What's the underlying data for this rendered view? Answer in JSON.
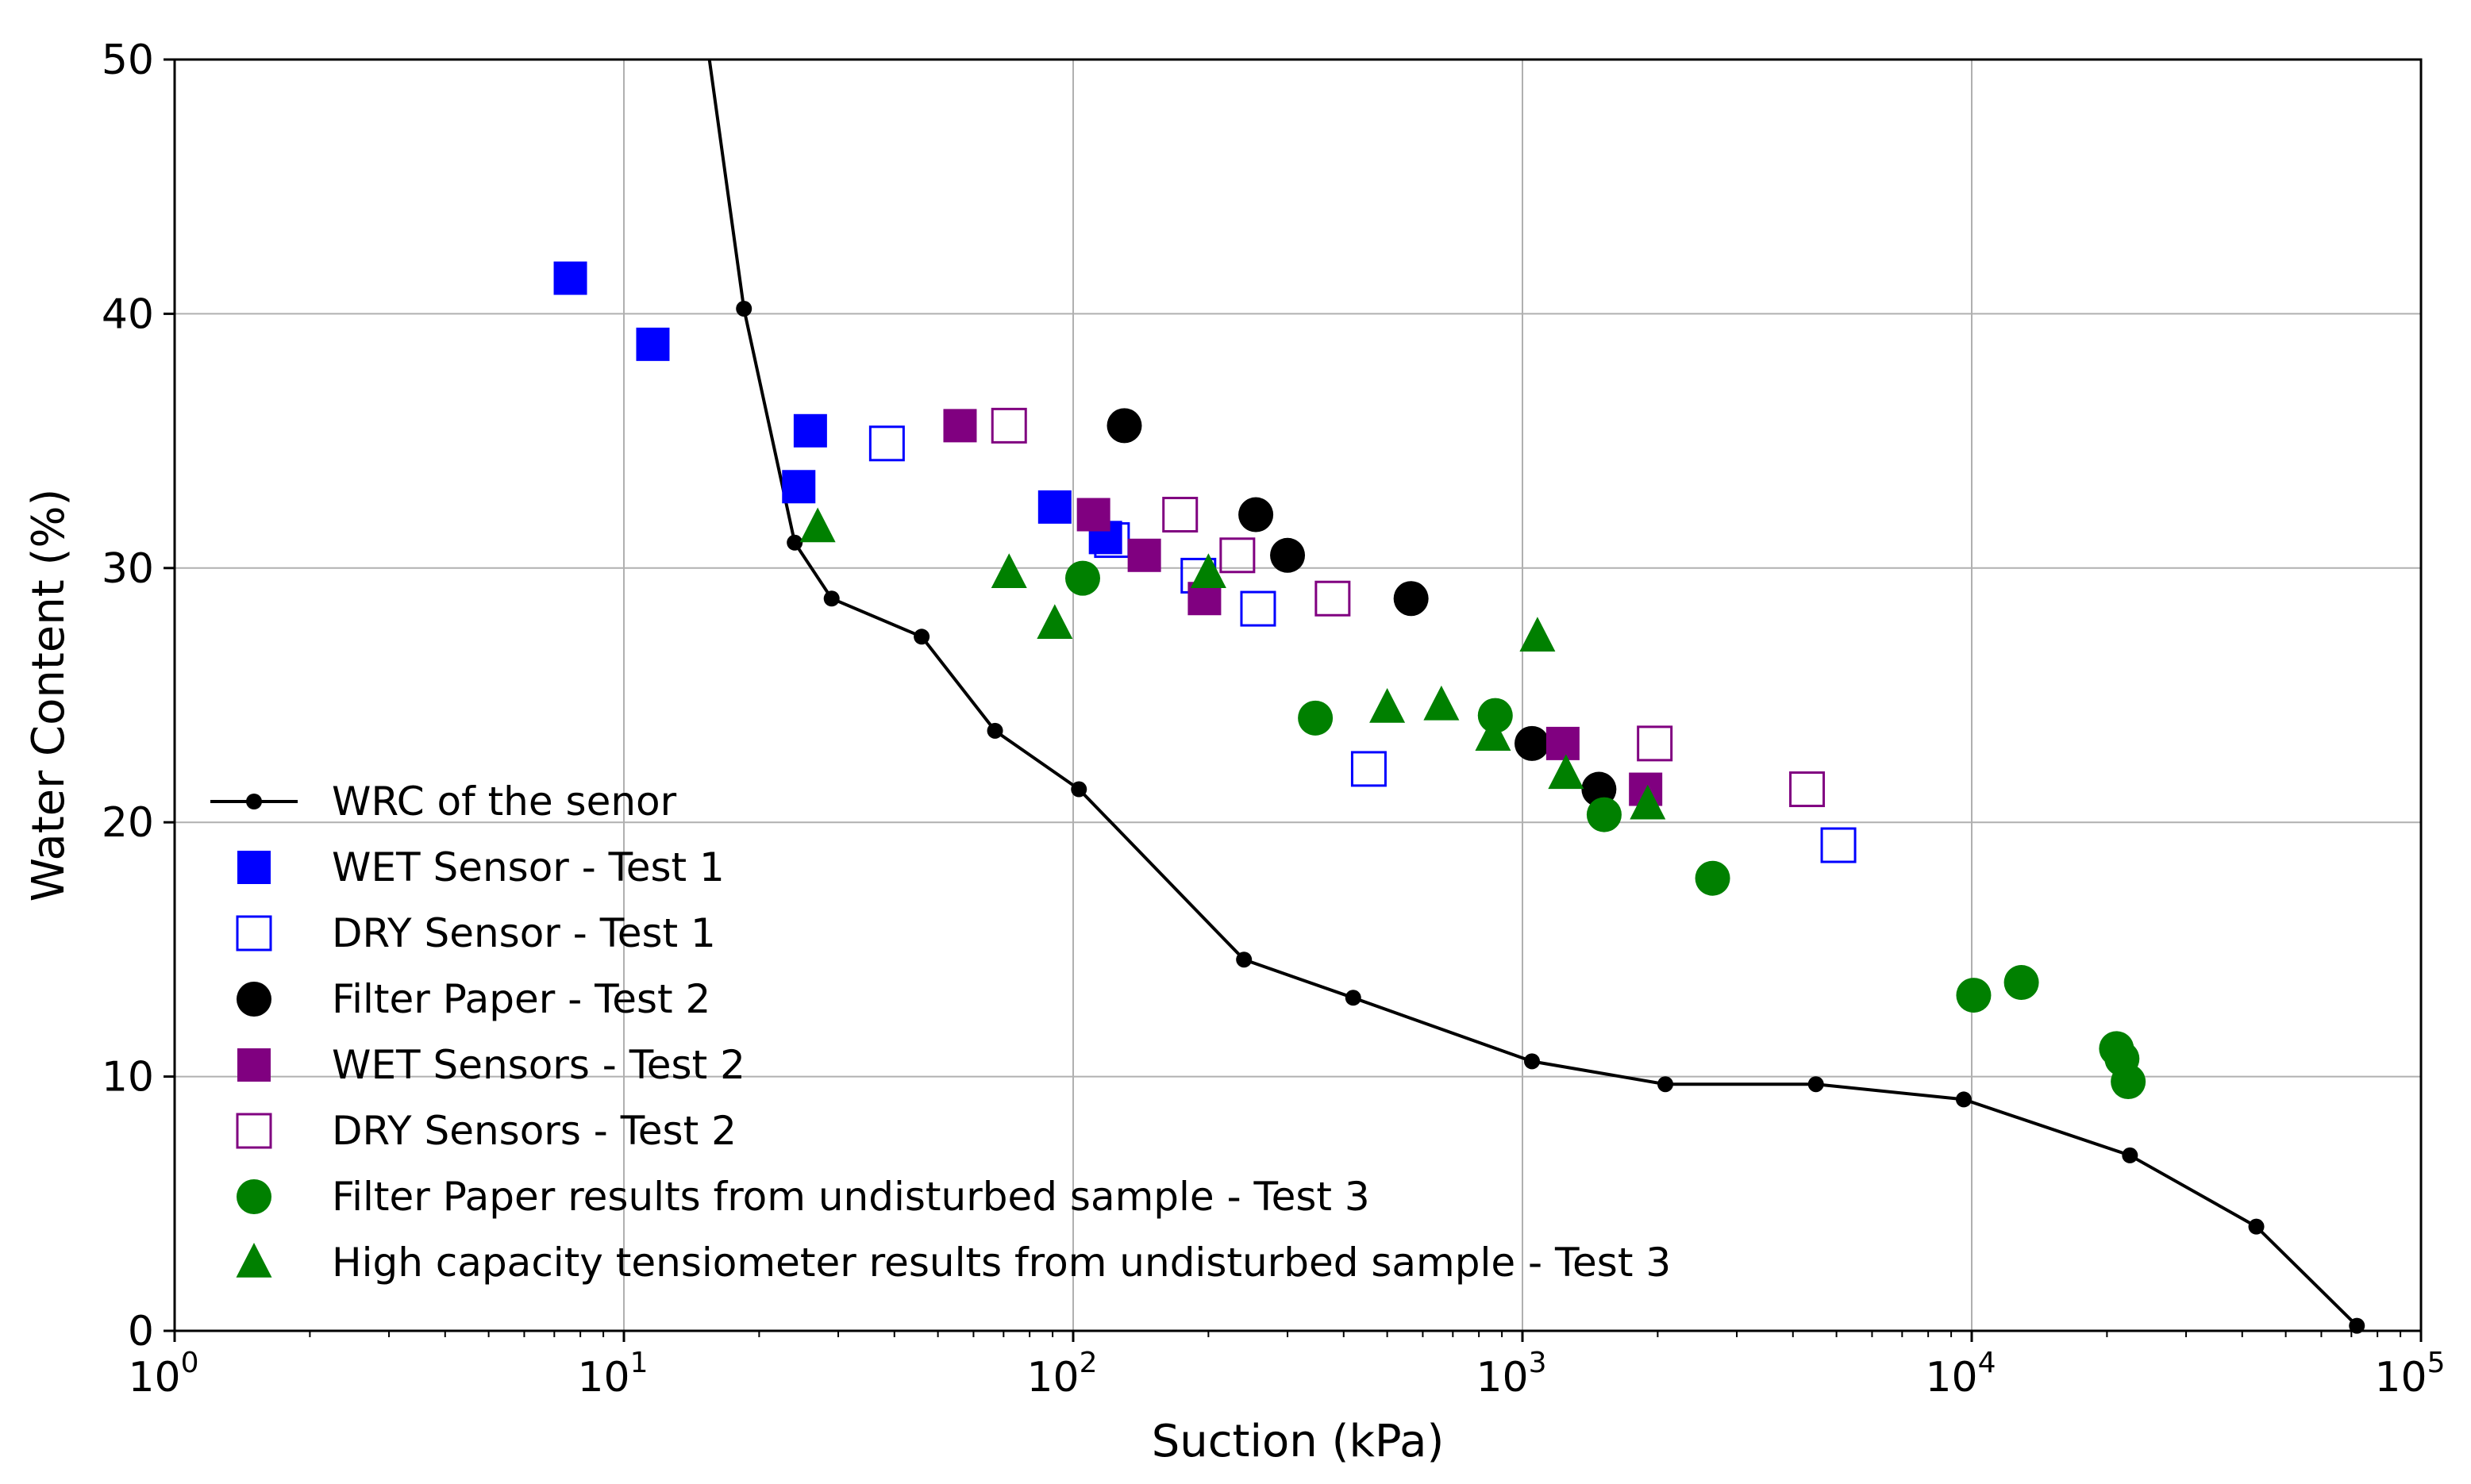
{
  "chart_data": {
    "type": "scatter",
    "title": "",
    "xlabel": "Suction (kPa)",
    "ylabel": "Water Content (%)",
    "xscale": "log",
    "xlim": [
      1,
      100000
    ],
    "ylim": [
      0,
      50
    ],
    "grid": true,
    "legend_position": "lower-left",
    "x_ticks": [
      {
        "value": 1,
        "base": "10",
        "exp": "0"
      },
      {
        "value": 10,
        "base": "10",
        "exp": "1"
      },
      {
        "value": 100,
        "base": "10",
        "exp": "2"
      },
      {
        "value": 1000,
        "base": "10",
        "exp": "3"
      },
      {
        "value": 10000,
        "base": "10",
        "exp": "4"
      },
      {
        "value": 100000,
        "base": "10",
        "exp": "5"
      }
    ],
    "y_ticks": [
      {
        "value": 0,
        "label": "0"
      },
      {
        "value": 10,
        "label": "10"
      },
      {
        "value": 20,
        "label": "20"
      },
      {
        "value": 30,
        "label": "30"
      },
      {
        "value": 40,
        "label": "40"
      },
      {
        "value": 50,
        "label": "50"
      }
    ],
    "series": [
      {
        "name": "WRC of the senor",
        "marker": "line-dot",
        "color": "#000000",
        "points": [
          [
            15.5,
            50
          ],
          [
            18.5,
            40.2
          ],
          [
            24,
            31
          ],
          [
            29,
            28.8
          ],
          [
            46,
            27.3
          ],
          [
            67,
            23.6
          ],
          [
            103,
            21.3
          ],
          [
            240,
            14.6
          ],
          [
            420,
            13.1
          ],
          [
            1050,
            10.6
          ],
          [
            2080,
            9.7
          ],
          [
            4500,
            9.7
          ],
          [
            9600,
            9.1
          ],
          [
            22500,
            6.9
          ],
          [
            43000,
            4.1
          ],
          [
            72000,
            0.2
          ]
        ]
      },
      {
        "name": "WET Sensor - Test 1",
        "marker": "square-filled",
        "color": "#0000ff",
        "points": [
          [
            7.6,
            41.4
          ],
          [
            11.6,
            38.8
          ],
          [
            26,
            35.4
          ],
          [
            24.5,
            33.2
          ],
          [
            91,
            32.4
          ],
          [
            118,
            31.2
          ]
        ]
      },
      {
        "name": "DRY Sensor - Test 1",
        "marker": "square-open",
        "color": "#0000ff",
        "points": [
          [
            38.5,
            34.9
          ],
          [
            122,
            31.1
          ],
          [
            190,
            29.7
          ],
          [
            258,
            28.4
          ],
          [
            455,
            22.1
          ],
          [
            5050,
            19.1
          ]
        ]
      },
      {
        "name": "Filter Paper - Test 2",
        "marker": "circle-filled",
        "color": "#000000",
        "points": [
          [
            130,
            35.6
          ],
          [
            255,
            32.1
          ],
          [
            300,
            30.5
          ],
          [
            565,
            28.8
          ],
          [
            1050,
            23.1
          ],
          [
            1480,
            21.3
          ]
        ]
      },
      {
        "name": "WET Sensors - Test 2",
        "marker": "square-filled",
        "color": "#800080",
        "points": [
          [
            56,
            35.6
          ],
          [
            111,
            32.1
          ],
          [
            144,
            30.5
          ],
          [
            196,
            28.8
          ],
          [
            1230,
            23.1
          ],
          [
            1880,
            21.3
          ]
        ]
      },
      {
        "name": "DRY Sensors - Test 2",
        "marker": "square-open",
        "color": "#800080",
        "points": [
          [
            72,
            35.6
          ],
          [
            173,
            32.1
          ],
          [
            232,
            30.5
          ],
          [
            378,
            28.8
          ],
          [
            1970,
            23.1
          ],
          [
            4300,
            21.3
          ]
        ]
      },
      {
        "name": "Filter Paper results from undisturbed sample - Test 3",
        "marker": "circle-filled",
        "color": "#008000",
        "points": [
          [
            105,
            29.6
          ],
          [
            346,
            24.1
          ],
          [
            870,
            24.2
          ],
          [
            1520,
            20.3
          ],
          [
            2650,
            17.8
          ],
          [
            10100,
            13.2
          ],
          [
            12900,
            13.7
          ],
          [
            21000,
            11.1
          ],
          [
            21600,
            10.7
          ],
          [
            22300,
            9.8
          ]
        ]
      },
      {
        "name": "High capacity tensiometer results from undisturbed sample - Test 3",
        "marker": "triangle-filled",
        "color": "#008000",
        "points": [
          [
            27,
            31.6
          ],
          [
            72,
            29.8
          ],
          [
            91,
            27.8
          ],
          [
            200,
            29.8
          ],
          [
            500,
            24.5
          ],
          [
            660,
            24.6
          ],
          [
            860,
            23.4
          ],
          [
            1080,
            27.3
          ],
          [
            1250,
            21.9
          ],
          [
            1900,
            20.7
          ]
        ]
      }
    ]
  }
}
